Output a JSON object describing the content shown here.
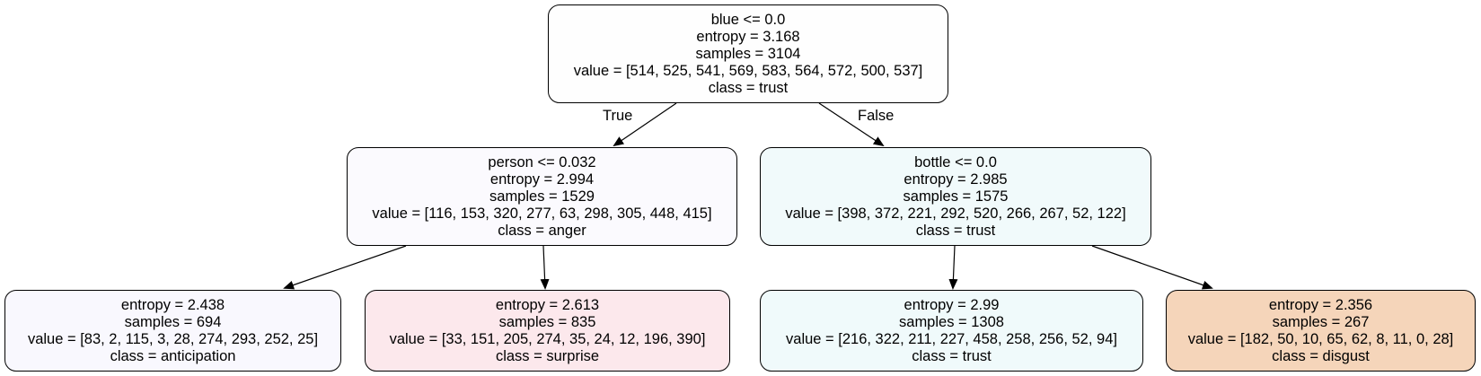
{
  "colors": {
    "edge": "#000000",
    "node_border": "#000000"
  },
  "edges": {
    "true_label": "True",
    "false_label": "False"
  },
  "nodes": {
    "root": {
      "split": "blue <= 0.0",
      "entropy": "entropy = 3.168",
      "samples": "samples = 3104",
      "value": "value = [514, 525, 541, 569, 583, 564, 572, 500, 537]",
      "class": "class = trust",
      "fill": "#fefefe"
    },
    "left": {
      "split": "person <= 0.032",
      "entropy": "entropy = 2.994",
      "samples": "samples = 1529",
      "value": "value = [116, 153, 320, 277, 63, 298, 305, 448, 415]",
      "class": "class = anger",
      "fill": "#fbfafe"
    },
    "right": {
      "split": "bottle <= 0.0",
      "entropy": "entropy = 2.985",
      "samples": "samples = 1575",
      "value": "value = [398, 372, 221, 292, 520, 266, 267, 52, 122]",
      "class": "class = trust",
      "fill": "#f1fafb"
    },
    "left_left": {
      "entropy": "entropy = 2.438",
      "samples": "samples = 694",
      "value": "value = [83, 2, 115, 3, 28, 274, 293, 252, 25]",
      "class": "class = anticipation",
      "fill": "#f9f8fe"
    },
    "left_right": {
      "entropy": "entropy = 2.613",
      "samples": "samples = 835",
      "value": "value = [33, 151, 205, 274, 35, 24, 12, 196, 390]",
      "class": "class = surprise",
      "fill": "#fce8ec"
    },
    "right_left": {
      "entropy": "entropy = 2.99",
      "samples": "samples = 1308",
      "value": "value = [216, 322, 211, 227, 458, 258, 256, 52, 94]",
      "class": "class = trust",
      "fill": "#f0fafb"
    },
    "right_right": {
      "entropy": "entropy = 2.356",
      "samples": "samples = 267",
      "value": "value = [182, 50, 10, 65, 62, 8, 11, 0, 28]",
      "class": "class = disgust",
      "fill": "#f5d5ba"
    }
  }
}
